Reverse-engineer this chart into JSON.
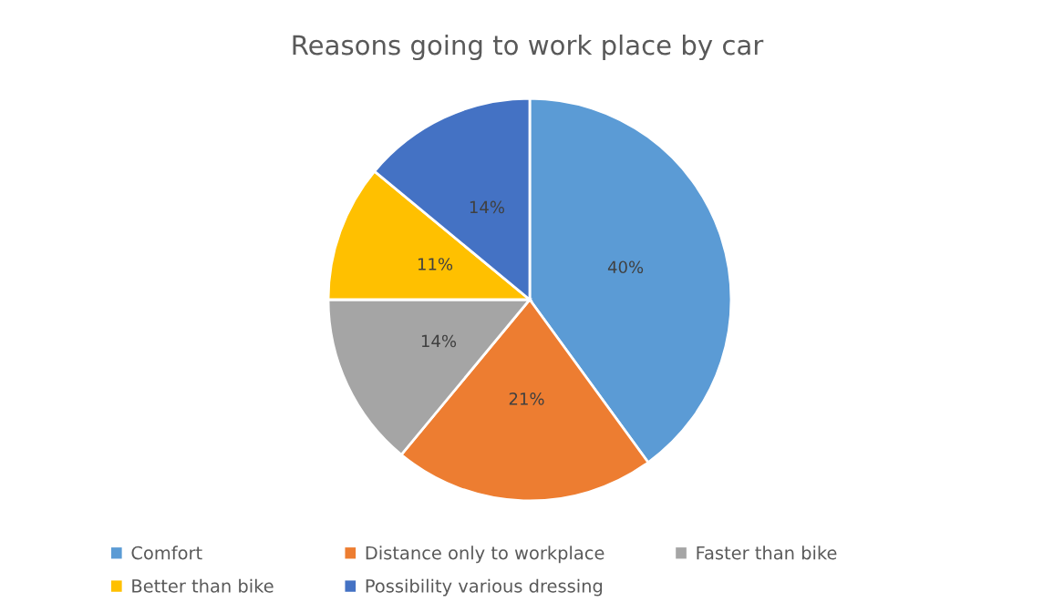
{
  "chart_data": {
    "type": "pie",
    "title": "Reasons going to work place by car",
    "categories": [
      "Comfort",
      "Distance only to workplace",
      "Faster than bike",
      "Better than bike",
      "Possibility various dressing"
    ],
    "values": [
      40,
      21,
      14,
      11,
      14
    ],
    "colors": [
      "#5b9bd5",
      "#ed7d31",
      "#a5a5a5",
      "#ffc000",
      "#4472c4"
    ],
    "value_labels": [
      "40%",
      "21%",
      "14%",
      "11%",
      "14%"
    ],
    "legend": "bottom"
  }
}
